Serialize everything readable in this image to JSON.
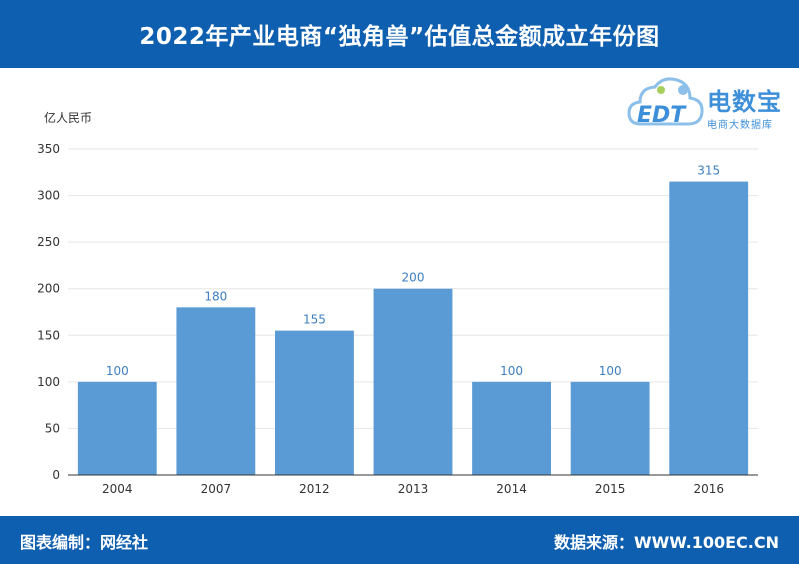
{
  "header": {
    "title": "2022年产业电商“独角兽”估值总金额成立年份图"
  },
  "logo": {
    "main": "电数宝",
    "sub": "电商大数据库",
    "mark": "EDT"
  },
  "footer": {
    "left": "图表编制：网经社",
    "right": "数据来源：WWW.100EC.CN"
  },
  "colors": {
    "bar": "#5b9bd5",
    "header": "#0f5fb0",
    "label": "#3d7fc0"
  },
  "chart_data": {
    "type": "bar",
    "title": "2022年产业电商“独角兽”估值总金额成立年份图",
    "ylabel": "亿人民币",
    "xlabel": "",
    "categories": [
      "2004",
      "2007",
      "2012",
      "2013",
      "2014",
      "2015",
      "2016"
    ],
    "values": [
      100,
      180,
      155,
      200,
      100,
      100,
      315
    ],
    "ylim": [
      0,
      350
    ],
    "yticks": [
      0,
      50,
      100,
      150,
      200,
      250,
      300,
      350
    ],
    "grid": true,
    "legend": "none"
  }
}
